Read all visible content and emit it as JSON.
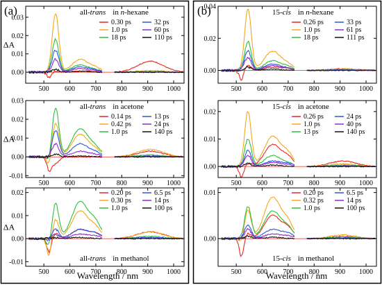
{
  "figure": {
    "panels": [
      {
        "letter": "(a)",
        "xlabel": "Wavelength / nm",
        "xticks": [
          "500",
          "600",
          "700",
          "800",
          "900",
          "1000"
        ]
      },
      {
        "letter": "(b)",
        "xlabel": "Wavelength / nm",
        "xticks": [
          "500",
          "600",
          "700",
          "800",
          "900",
          "1000"
        ]
      }
    ]
  },
  "chart_data": [
    {
      "type": "line",
      "panel": "a",
      "row": 1,
      "isomer": "all-",
      "isomer_em": "trans",
      "solvent_prefix": "in ",
      "solvent_em": "n",
      "solvent_rest": "-hexane",
      "ylabel": "ΔA",
      "xlim": [
        430,
        1040
      ],
      "ylim": [
        -0.006,
        0.036
      ],
      "yticks": [
        0.0,
        0.01,
        0.02,
        0.03
      ],
      "ytick_labels": [
        "0.00",
        "0.01",
        "0.02",
        "0.03"
      ],
      "series": [
        {
          "name": "0.30 ps",
          "color": "#e8271f",
          "a1": 0.0005,
          "a2": 0.0006,
          "a3": 0.0003,
          "nir": 0.006,
          "neg": 0.003
        },
        {
          "name": "1.0 ps",
          "color": "#f2a81c",
          "a1": 0.032,
          "a2": 0.007,
          "a3": 0.002,
          "nir": 0.001,
          "neg": 0.0
        },
        {
          "name": "18 ps",
          "color": "#2fbf3a",
          "a1": 0.018,
          "a2": 0.004,
          "a3": 0.001,
          "nir": 0.0003,
          "neg": 0.0
        },
        {
          "name": "32 ps",
          "color": "#2c57d8",
          "a1": 0.012,
          "a2": 0.003,
          "a3": 0.001,
          "nir": 0.0002,
          "neg": 0.0
        },
        {
          "name": "60 ps",
          "color": "#8d2bc9",
          "a1": 0.007,
          "a2": 0.002,
          "a3": 0.0005,
          "nir": 0.0001,
          "neg": 0.0
        },
        {
          "name": "110 ps",
          "color": "#111111",
          "a1": 0.0015,
          "a2": 0.0005,
          "a3": 0.0,
          "nir": 0.0,
          "neg": 0.0
        }
      ]
    },
    {
      "type": "line",
      "panel": "a",
      "row": 2,
      "isomer": "all-",
      "isomer_em": "trans",
      "solvent_prefix": "in acetone",
      "solvent_em": "",
      "solvent_rest": "",
      "ylabel": "ΔA",
      "xlim": [
        430,
        1040
      ],
      "ylim": [
        -0.011,
        0.03
      ],
      "yticks": [
        -0.01,
        0.0,
        0.01,
        0.02,
        0.03
      ],
      "ytick_labels": [
        "-0.01",
        "0.00",
        "0.01",
        "0.02",
        "0.03"
      ],
      "series": [
        {
          "name": "0.14 ps",
          "color": "#e8271f",
          "a1": -0.004,
          "a2": 0.0,
          "a3": 0.0,
          "nir": 0.003,
          "neg": 0.007
        },
        {
          "name": "0.42 ps",
          "color": "#f2a81c",
          "a1": 0.018,
          "a2": 0.012,
          "a3": 0.003,
          "nir": 0.004,
          "neg": 0.005
        },
        {
          "name": "1.0 ps",
          "color": "#2fbf3a",
          "a1": 0.026,
          "a2": 0.015,
          "a3": 0.004,
          "nir": 0.001,
          "neg": 0.003
        },
        {
          "name": "13 ps",
          "color": "#2c57d8",
          "a1": 0.014,
          "a2": 0.007,
          "a3": 0.002,
          "nir": 0.0005,
          "neg": 0.001
        },
        {
          "name": "24 ps",
          "color": "#8d2bc9",
          "a1": 0.007,
          "a2": 0.003,
          "a3": 0.001,
          "nir": 0.0002,
          "neg": 0.0
        },
        {
          "name": "140 ps",
          "color": "#111111",
          "a1": 0.0015,
          "a2": 0.0005,
          "a3": 0.0,
          "nir": 0.0,
          "neg": 0.0
        }
      ]
    },
    {
      "type": "line",
      "panel": "a",
      "row": 3,
      "isomer": "all-",
      "isomer_em": "trans",
      "solvent_prefix": "in methanol",
      "solvent_em": "",
      "solvent_rest": "",
      "ylabel": "ΔA",
      "xlim": [
        430,
        1040
      ],
      "ylim": [
        -0.012,
        0.022
      ],
      "yticks": [
        -0.01,
        0.0,
        0.01,
        0.02
      ],
      "ytick_labels": [
        "-0.01",
        "0.00",
        "0.01",
        "0.02"
      ],
      "series": [
        {
          "name": "0.20 ps",
          "color": "#e8271f",
          "a1": 0.002,
          "a2": 0.004,
          "a3": 0.002,
          "nir": 0.003,
          "neg": 0.006
        },
        {
          "name": "0.30 ps",
          "color": "#f2a81c",
          "a1": 0.008,
          "a2": 0.012,
          "a3": 0.004,
          "nir": 0.003,
          "neg": 0.008
        },
        {
          "name": "1.0 ps",
          "color": "#2fbf3a",
          "a1": 0.015,
          "a2": 0.016,
          "a3": 0.006,
          "nir": 0.001,
          "neg": 0.004
        },
        {
          "name": "6.5 ps",
          "color": "#2c57d8",
          "a1": 0.004,
          "a2": 0.004,
          "a3": 0.002,
          "nir": 0.0005,
          "neg": 0.001
        },
        {
          "name": "14 ps",
          "color": "#8d2bc9",
          "a1": 0.002,
          "a2": 0.002,
          "a3": 0.001,
          "nir": 0.0002,
          "neg": 0.0
        },
        {
          "name": "100 ps",
          "color": "#111111",
          "a1": 0.0005,
          "a2": 0.0005,
          "a3": 0.0,
          "nir": 0.0,
          "neg": 0.0
        }
      ]
    },
    {
      "type": "line",
      "panel": "b",
      "row": 1,
      "isomer": "15-",
      "isomer_em": "cis",
      "solvent_prefix": "in ",
      "solvent_em": "n",
      "solvent_rest": "-hexane",
      "ylabel": "",
      "xlim": [
        430,
        1040
      ],
      "ylim": [
        -0.008,
        0.04
      ],
      "yticks": [
        0.0,
        0.02,
        0.04
      ],
      "ytick_labels": [
        "0.00",
        "0.02",
        "0.04"
      ],
      "series": [
        {
          "name": "0.26 ps",
          "color": "#e8271f",
          "a1": 0.003,
          "a2": 0.002,
          "a3": 0.001,
          "nir": 0.001,
          "neg": 0.006
        },
        {
          "name": "1.0 ps",
          "color": "#f2a81c",
          "a1": 0.038,
          "a2": 0.012,
          "a3": 0.003,
          "nir": 0.001,
          "neg": 0.0
        },
        {
          "name": "18 ps",
          "color": "#2fbf3a",
          "a1": 0.018,
          "a2": 0.006,
          "a3": 0.002,
          "nir": 0.0005,
          "neg": 0.0
        },
        {
          "name": "33 ps",
          "color": "#2c57d8",
          "a1": 0.012,
          "a2": 0.004,
          "a3": 0.001,
          "nir": 0.0003,
          "neg": 0.0
        },
        {
          "name": "61 ps",
          "color": "#8d2bc9",
          "a1": 0.008,
          "a2": 0.003,
          "a3": 0.001,
          "nir": 0.0002,
          "neg": 0.0
        },
        {
          "name": "111 ps",
          "color": "#111111",
          "a1": 0.002,
          "a2": 0.0008,
          "a3": 0.0,
          "nir": 0.0,
          "neg": 0.0
        }
      ]
    },
    {
      "type": "line",
      "panel": "b",
      "row": 2,
      "isomer": "15-",
      "isomer_em": "cis",
      "solvent_prefix": "in acetone",
      "solvent_em": "",
      "solvent_rest": "",
      "ylabel": "",
      "xlim": [
        430,
        1040
      ],
      "ylim": [
        -0.004,
        0.024
      ],
      "yticks": [
        0.0,
        0.01,
        0.02
      ],
      "ytick_labels": [
        "0.00",
        "0.01",
        "0.02"
      ],
      "series": [
        {
          "name": "0.26 ps",
          "color": "#e8271f",
          "a1": 0.001,
          "a2": 0.008,
          "a3": 0.003,
          "nir": 0.002,
          "neg": 0.004
        },
        {
          "name": "1.0 ps",
          "color": "#f2a81c",
          "a1": 0.02,
          "a2": 0.011,
          "a3": 0.004,
          "nir": 0.001,
          "neg": 0.0
        },
        {
          "name": "13 ps",
          "color": "#2fbf3a",
          "a1": 0.01,
          "a2": 0.004,
          "a3": 0.001,
          "nir": 0.0005,
          "neg": 0.0
        },
        {
          "name": "24 ps",
          "color": "#2c57d8",
          "a1": 0.006,
          "a2": 0.002,
          "a3": 0.001,
          "nir": 0.0003,
          "neg": 0.0
        },
        {
          "name": "40 ps",
          "color": "#8d2bc9",
          "a1": 0.004,
          "a2": 0.0015,
          "a3": 0.0005,
          "nir": 0.0002,
          "neg": 0.0
        },
        {
          "name": "140 ps",
          "color": "#111111",
          "a1": 0.001,
          "a2": 0.0005,
          "a3": 0.0,
          "nir": 0.0,
          "neg": 0.0
        }
      ]
    },
    {
      "type": "line",
      "panel": "b",
      "row": 3,
      "isomer": "15-",
      "isomer_em": "cis",
      "solvent_prefix": "in methanol",
      "solvent_em": "",
      "solvent_rest": "",
      "ylabel": "",
      "xlim": [
        430,
        1040
      ],
      "ylim": [
        -0.006,
        0.011
      ],
      "yticks": [
        0.0,
        0.01
      ],
      "ytick_labels": [
        "0.00",
        "0.01"
      ],
      "series": [
        {
          "name": "0.20 ps",
          "color": "#e8271f",
          "a1": 0.001,
          "a2": 0.005,
          "a3": 0.002,
          "nir": 0.0005,
          "neg": 0.004
        },
        {
          "name": "0.32 ps",
          "color": "#f2a81c",
          "a1": 0.006,
          "a2": 0.009,
          "a3": 0.003,
          "nir": 0.0008,
          "neg": 0.001
        },
        {
          "name": "1.0 ps",
          "color": "#2fbf3a",
          "a1": 0.007,
          "a2": 0.006,
          "a3": 0.002,
          "nir": 0.0004,
          "neg": 0.0
        },
        {
          "name": "6.5 ps",
          "color": "#2c57d8",
          "a1": 0.003,
          "a2": 0.002,
          "a3": 0.001,
          "nir": 0.0002,
          "neg": 0.0
        },
        {
          "name": "14 ps",
          "color": "#8d2bc9",
          "a1": 0.002,
          "a2": 0.001,
          "a3": 0.0005,
          "nir": 0.0001,
          "neg": 0.0
        },
        {
          "name": "100 ps",
          "color": "#111111",
          "a1": 0.0005,
          "a2": 0.0003,
          "a3": 0.0,
          "nir": 0.0,
          "neg": 0.0
        }
      ]
    }
  ]
}
